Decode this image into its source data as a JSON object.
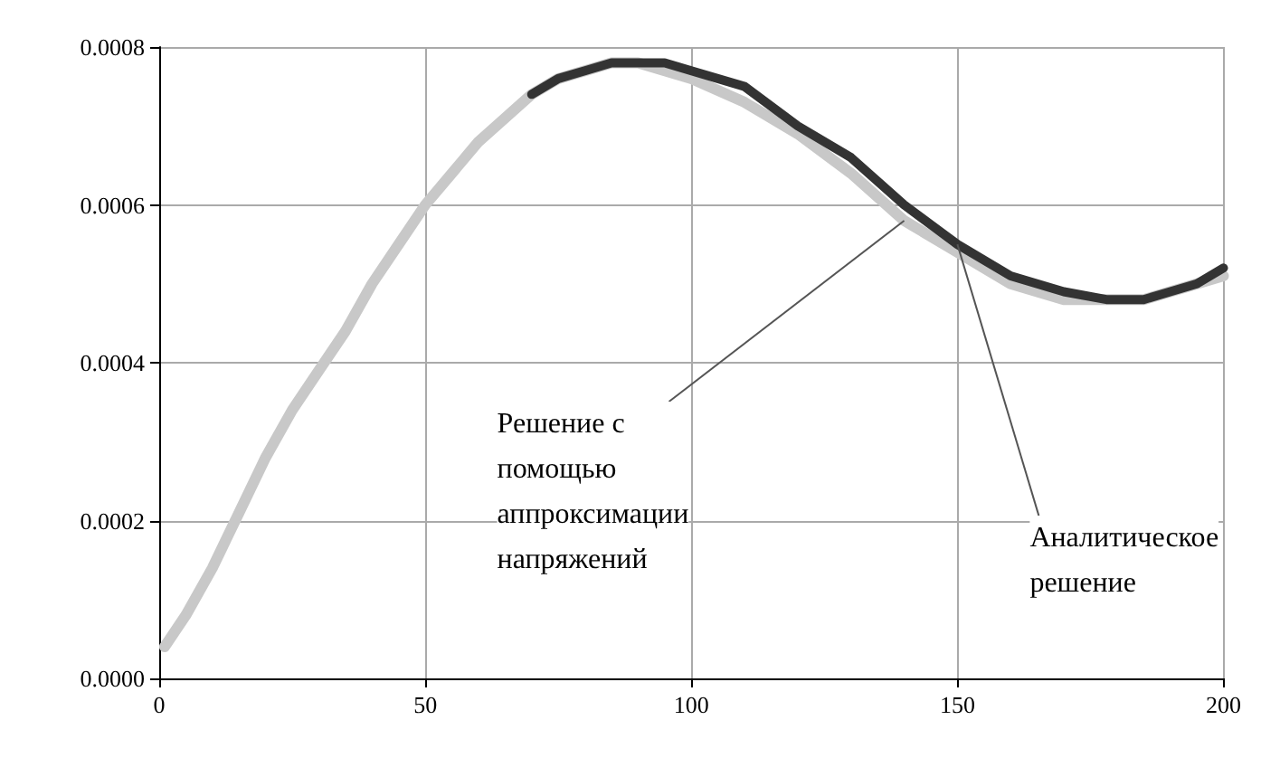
{
  "chart_data": {
    "type": "line",
    "xlim": [
      0,
      200
    ],
    "ylim": [
      0,
      0.0008
    ],
    "xticks": [
      0,
      50,
      100,
      150,
      200
    ],
    "yticks": [
      {
        "value": 0,
        "label": "0.0000"
      },
      {
        "value": 0.0002,
        "label": "0.0002"
      },
      {
        "value": 0.0004,
        "label": "0.0004"
      },
      {
        "value": 0.0006,
        "label": "0.0006"
      },
      {
        "value": 0.0008,
        "label": "0.0008"
      }
    ],
    "grid": true,
    "marker": "none",
    "line_style": "solid",
    "series": [
      {
        "color": "#333333",
        "x": [
          70,
          75,
          80,
          85,
          90,
          95,
          100,
          110,
          120,
          130,
          140,
          150,
          160,
          170,
          178,
          185,
          190,
          195,
          200
        ],
        "values": [
          0.00074,
          0.00076,
          0.00077,
          0.00078,
          0.00078,
          0.00078,
          0.00077,
          0.00075,
          0.0007,
          0.00066,
          0.0006,
          0.00055,
          0.00051,
          0.00049,
          0.00048,
          0.00048,
          0.00049,
          0.0005,
          0.00052
        ]
      },
      {
        "color": "#c8c8c8",
        "x": [
          1,
          5,
          10,
          15,
          20,
          25,
          30,
          35,
          40,
          45,
          50,
          55,
          60,
          65,
          70,
          75,
          80,
          85,
          90,
          95,
          100,
          110,
          120,
          130,
          140,
          150,
          160,
          170,
          178,
          185,
          190,
          195,
          200
        ],
        "values": [
          4e-05,
          8e-05,
          0.00014,
          0.00021,
          0.00028,
          0.00034,
          0.00039,
          0.00044,
          0.0005,
          0.00055,
          0.0006,
          0.00064,
          0.00068,
          0.00071,
          0.00074,
          0.00076,
          0.00077,
          0.00078,
          0.00078,
          0.00077,
          0.00076,
          0.00073,
          0.00069,
          0.00064,
          0.00058,
          0.00054,
          0.0005,
          0.00048,
          0.00048,
          0.00048,
          0.00049,
          0.0005,
          0.00051
        ]
      }
    ],
    "annotations": [
      {
        "text": "Решение с\nпомощью\nаппроксимации\nнапряжений",
        "x": 140,
        "y": 0.00058
      },
      {
        "text": "Аналитическое\nрешение",
        "x": 150,
        "y": 0.00055
      }
    ]
  }
}
